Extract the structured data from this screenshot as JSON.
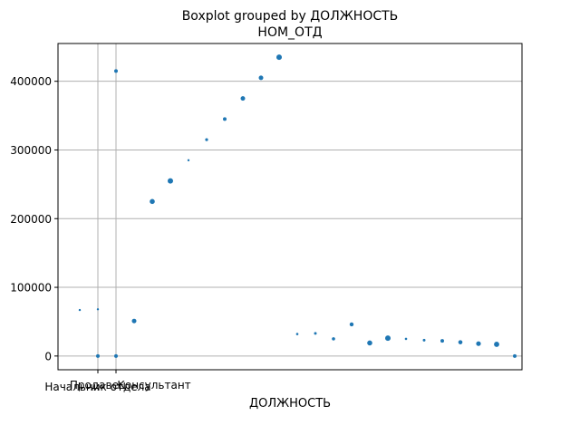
{
  "chart_data": {
    "type": "scatter",
    "title": "Boxplot grouped by ДОЛЖНОСТЬ",
    "subtitle": "НОМ_ОТД",
    "xlabel": "ДОЛЖНОСТЬ",
    "ylabel": "",
    "ylim": [
      -20000,
      455000
    ],
    "y_ticks": [
      0,
      100000,
      200000,
      300000,
      400000
    ],
    "y_tick_labels": [
      "0",
      "100000",
      "200000",
      "300000",
      "400000"
    ],
    "x_tick_labels": [
      "Начальник отдела",
      "Продавец",
      "Консультант"
    ],
    "grid": true,
    "point_color": "#1f77b4",
    "grid_color": "#b0b0b0",
    "x": [
      1.0,
      1.5,
      1.5,
      2.0,
      2.0,
      2.5,
      3.0,
      3.5,
      4.0,
      4.5,
      5.0,
      5.5,
      6.0,
      6.5,
      7.0,
      7.5,
      8.0,
      8.5,
      9.0,
      9.5,
      10.0,
      10.5,
      11.0,
      11.5,
      12.0,
      12.5,
      13.0
    ],
    "y": [
      67000,
      68000,
      0,
      415000,
      0,
      51000,
      225000,
      255000,
      285000,
      315000,
      345000,
      375000,
      405000,
      435000,
      32000,
      33000,
      25000,
      46000,
      19000,
      26000,
      25000,
      23000,
      22000,
      20000,
      18000,
      17000,
      0
    ]
  }
}
